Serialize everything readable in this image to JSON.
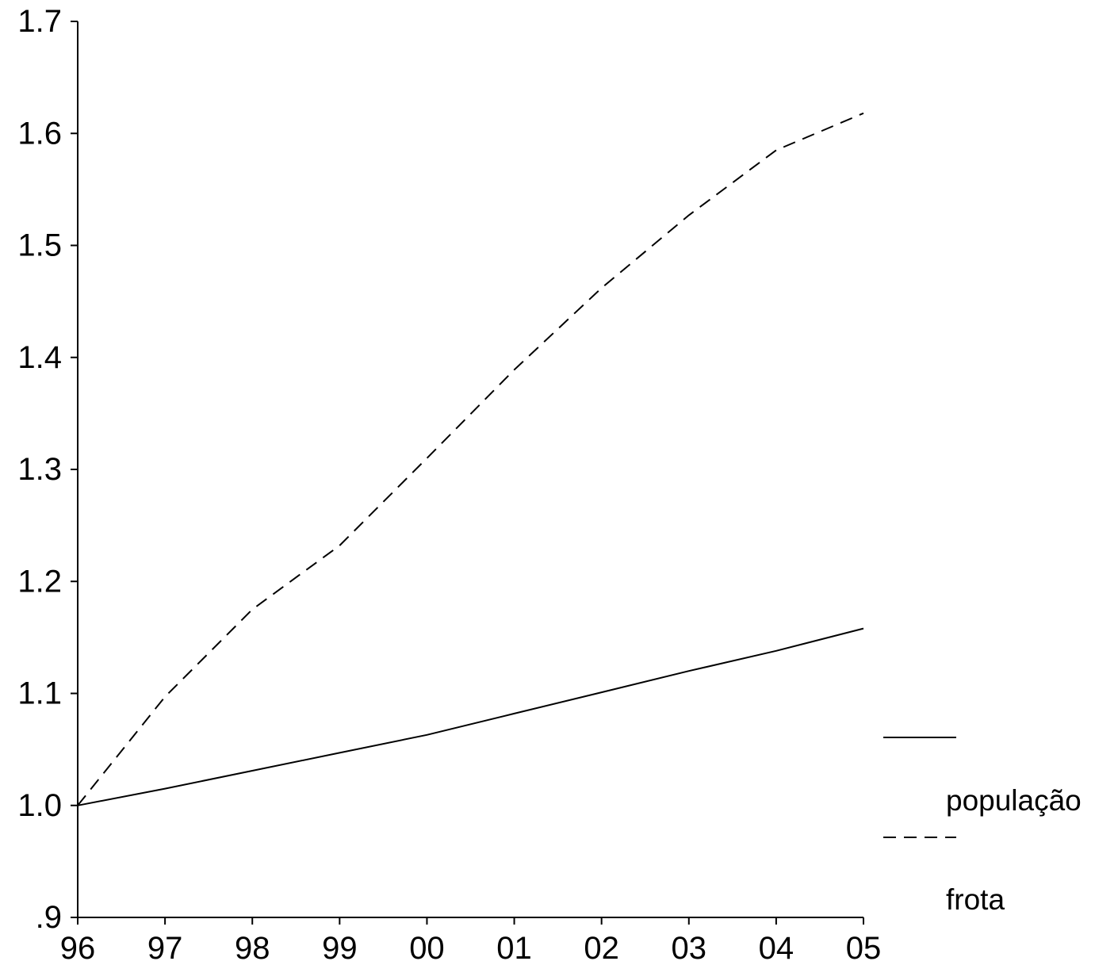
{
  "chart_data": {
    "type": "line",
    "x": [
      "96",
      "97",
      "98",
      "99",
      "00",
      "01",
      "02",
      "03",
      "04",
      "05"
    ],
    "series": [
      {
        "name": "população",
        "values": [
          1.0,
          1.015,
          1.031,
          1.047,
          1.063,
          1.082,
          1.101,
          1.12,
          1.138,
          1.158
        ],
        "color": "#000000",
        "dash": "solid"
      },
      {
        "name": "frota",
        "values": [
          1.0,
          1.097,
          1.175,
          1.232,
          1.31,
          1.389,
          1.462,
          1.527,
          1.585,
          1.618
        ],
        "color": "#000000",
        "dash": "dashed"
      }
    ],
    "xticks": [
      "96",
      "97",
      "98",
      "99",
      "00",
      "01",
      "02",
      "03",
      "04",
      "05"
    ],
    "yticks": [
      {
        "value": 0.9,
        "label": ".9"
      },
      {
        "value": 1.0,
        "label": "1.0"
      },
      {
        "value": 1.1,
        "label": "1.1"
      },
      {
        "value": 1.2,
        "label": "1.2"
      },
      {
        "value": 1.3,
        "label": "1.3"
      },
      {
        "value": 1.4,
        "label": "1.4"
      },
      {
        "value": 1.5,
        "label": "1.5"
      },
      {
        "value": 1.6,
        "label": "1.6"
      },
      {
        "value": 1.7,
        "label": "1.7"
      }
    ],
    "ylim": [
      0.9,
      1.7
    ],
    "title": "",
    "xlabel": "",
    "ylabel": "",
    "grid": false,
    "legend_position": "right"
  }
}
